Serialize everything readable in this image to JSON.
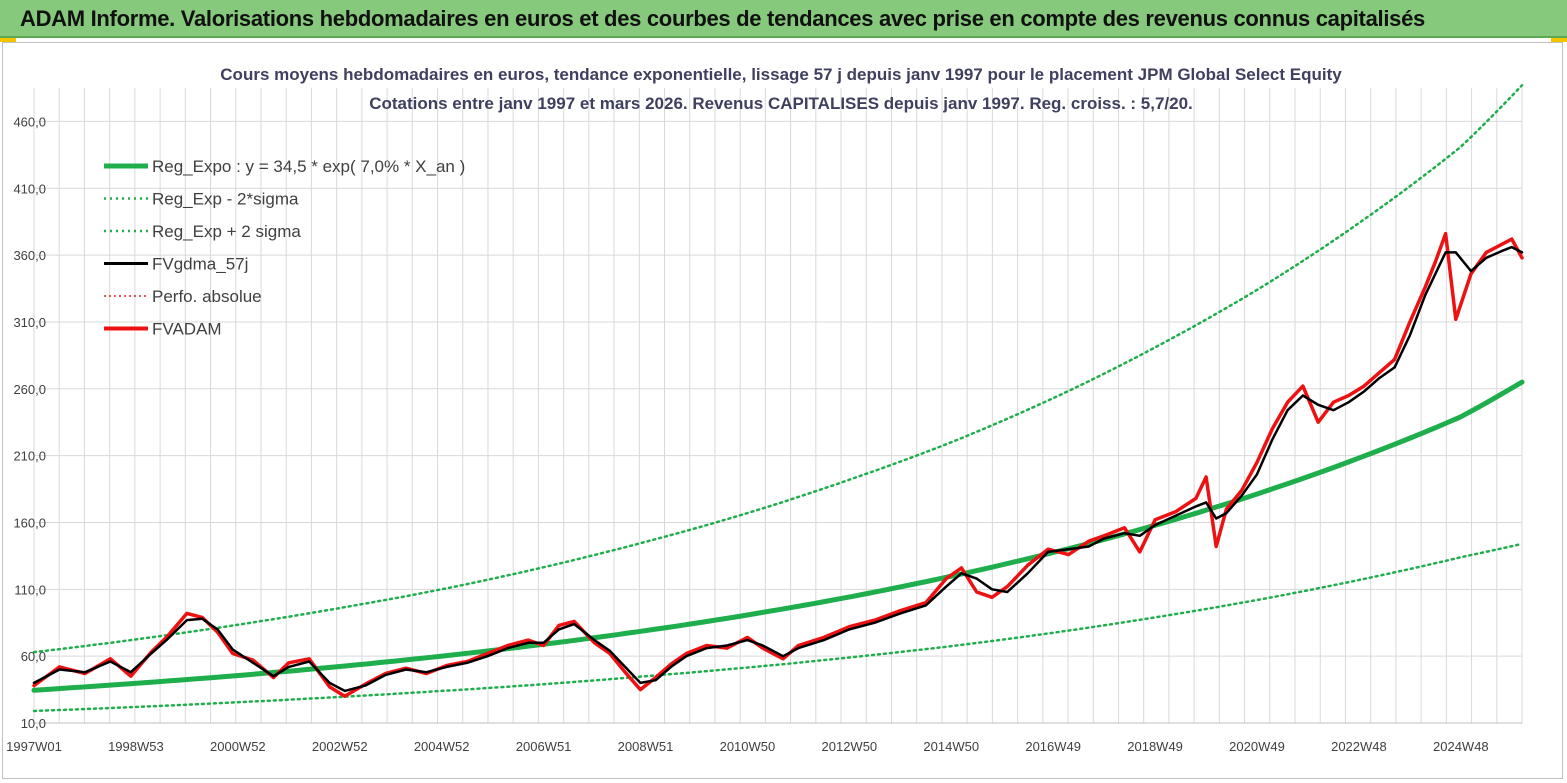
{
  "header": {
    "banner": "ADAM Informe. Valorisations hebdomadaires en euros et des courbes de tendances avec prise en compte des revenus connus capitalisés"
  },
  "colors": {
    "banner_bg": "#86c97c",
    "reg_expo": "#1fae4c",
    "sigma": "#1fae4c",
    "fvgdma": "#000000",
    "perfo": "#e02020",
    "fvadam": "#ee1111",
    "grid": "#d9d9d9"
  },
  "chart_data": {
    "type": "line",
    "title": [
      "Cours moyens hebdomadaires en euros, tendance exponentielle, lissage 57 j depuis janv 1997 pour le placement JPM Global Select Equity",
      "Cotations entre janv 1997 et mars 2026. Revenus CAPITALISES depuis janv 1997. Reg. croiss. : 5,7/20."
    ],
    "xlabel": "",
    "ylabel": "",
    "xlim": [
      1997.0,
      2026.2
    ],
    "ylim": [
      10,
      485
    ],
    "y_ticks": [
      "10,0",
      "60,0",
      "110,0",
      "160,0",
      "210,0",
      "260,0",
      "310,0",
      "360,0",
      "410,0",
      "460,0"
    ],
    "y_tick_values": [
      10,
      60,
      110,
      160,
      210,
      260,
      310,
      360,
      410,
      460
    ],
    "x_ticks": [
      "1997W01",
      "1998W53",
      "2000W52",
      "2002W52",
      "2004W52",
      "2006W51",
      "2008W51",
      "2010W50",
      "2012W50",
      "2014W50",
      "2016W49",
      "2018W49",
      "2020W49",
      "2022W48",
      "2024W48"
    ],
    "x_tick_values": [
      1997.0,
      1999.0,
      2001.0,
      2003.0,
      2005.0,
      2007.0,
      2009.0,
      2011.0,
      2013.0,
      2015.0,
      2017.0,
      2019.0,
      2021.0,
      2023.0,
      2025.0
    ],
    "legend": [
      {
        "label": "Reg_Expo : y = 34,5 * exp( 7,0% *  X_an )",
        "style": "thick-solid"
      },
      {
        "label": "Reg_Exp - 2*sigma",
        "style": "dotted"
      },
      {
        "label": "Reg_Exp + 2 sigma",
        "style": "dotted"
      },
      {
        "label": "FVgdma_57j",
        "style": "solid"
      },
      {
        "label": "Perfo. absolue",
        "style": "dotted-red"
      },
      {
        "label": "FVADAM",
        "style": "thick-solid-red"
      }
    ],
    "series": [
      {
        "name": "Reg_Expo : y = 34,5 * exp( 7,0% *  X_an )",
        "x": [
          1997.0,
          1999.0,
          2001.0,
          2003.0,
          2005.0,
          2007.0,
          2009.0,
          2011.0,
          2013.0,
          2015.0,
          2017.0,
          2019.0,
          2021.0,
          2023.0,
          2025.0,
          2026.2
        ],
        "y": [
          34.5,
          39.7,
          45.5,
          52.3,
          60.0,
          68.9,
          79.1,
          90.8,
          104.3,
          119.8,
          137.5,
          157.9,
          181.3,
          208.2,
          239.0,
          265.0
        ]
      },
      {
        "name": "Reg_Exp - 2*sigma",
        "x": [
          1997.0,
          1999.0,
          2001.0,
          2003.0,
          2005.0,
          2007.0,
          2009.0,
          2011.0,
          2013.0,
          2015.0,
          2017.0,
          2019.0,
          2021.0,
          2023.0,
          2025.0,
          2026.2
        ],
        "y": [
          19.0,
          22.0,
          25.5,
          29.5,
          34.0,
          39.0,
          45.0,
          51.5,
          59.0,
          67.5,
          77.5,
          89.0,
          102.0,
          117.0,
          134.0,
          144.0
        ]
      },
      {
        "name": "Reg_Exp + 2 sigma",
        "x": [
          1997.0,
          1999.0,
          2001.0,
          2003.0,
          2005.0,
          2007.0,
          2009.0,
          2011.0,
          2013.0,
          2015.0,
          2017.0,
          2019.0,
          2021.0,
          2023.0,
          2025.0,
          2026.2
        ],
        "y": [
          63.0,
          72.5,
          83.5,
          96.0,
          110.0,
          126.5,
          145.5,
          167.0,
          192.0,
          220.0,
          253.0,
          291.0,
          334.0,
          384.0,
          441.0,
          487.0
        ]
      },
      {
        "name": "FVgdma_57j",
        "x": [
          1997.0,
          1997.5,
          1998.0,
          1998.5,
          1998.9,
          1999.3,
          1999.6,
          2000.0,
          2000.3,
          2000.6,
          2000.9,
          2001.3,
          2001.7,
          2002.0,
          2002.4,
          2002.8,
          2003.1,
          2003.5,
          2003.9,
          2004.3,
          2004.7,
          2005.1,
          2005.5,
          2005.9,
          2006.3,
          2006.7,
          2007.0,
          2007.3,
          2007.6,
          2008.0,
          2008.3,
          2008.6,
          2008.9,
          2009.2,
          2009.5,
          2009.8,
          2010.2,
          2010.6,
          2011.0,
          2011.3,
          2011.7,
          2012.0,
          2012.5,
          2013.0,
          2013.5,
          2014.0,
          2014.5,
          2014.9,
          2015.2,
          2015.5,
          2015.8,
          2016.1,
          2016.5,
          2016.9,
          2017.3,
          2017.7,
          2018.0,
          2018.4,
          2018.7,
          2019.0,
          2019.4,
          2019.8,
          2020.0,
          2020.2,
          2020.4,
          2020.7,
          2021.0,
          2021.3,
          2021.6,
          2021.9,
          2022.2,
          2022.5,
          2022.8,
          2023.1,
          2023.4,
          2023.7,
          2024.0,
          2024.3,
          2024.5,
          2024.7,
          2024.9,
          2025.2,
          2025.5,
          2025.8,
          2026.0,
          2026.2
        ],
        "y": [
          40,
          50,
          48,
          56,
          48,
          62,
          72,
          87,
          88,
          80,
          65,
          55,
          45,
          52,
          56,
          40,
          34,
          38,
          46,
          50,
          48,
          52,
          55,
          60,
          66,
          70,
          70,
          80,
          84,
          72,
          64,
          52,
          40,
          42,
          52,
          60,
          66,
          68,
          72,
          68,
          60,
          66,
          72,
          80,
          85,
          92,
          98,
          112,
          122,
          118,
          110,
          108,
          122,
          138,
          140,
          142,
          148,
          152,
          150,
          158,
          165,
          172,
          175,
          163,
          167,
          180,
          196,
          222,
          244,
          255,
          248,
          244,
          250,
          258,
          268,
          276,
          300,
          330,
          346,
          362,
          362,
          348,
          358,
          363,
          366,
          362
        ]
      },
      {
        "name": "Perfo. absolue",
        "x": [],
        "y": []
      },
      {
        "name": "FVADAM",
        "x": [
          1997.0,
          1997.5,
          1998.0,
          1998.5,
          1998.9,
          1999.3,
          1999.6,
          2000.0,
          2000.3,
          2000.6,
          2000.9,
          2001.3,
          2001.7,
          2002.0,
          2002.4,
          2002.8,
          2003.1,
          2003.5,
          2003.9,
          2004.3,
          2004.7,
          2005.1,
          2005.5,
          2005.9,
          2006.3,
          2006.7,
          2007.0,
          2007.3,
          2007.6,
          2008.0,
          2008.3,
          2008.6,
          2008.9,
          2009.2,
          2009.5,
          2009.8,
          2010.2,
          2010.6,
          2011.0,
          2011.3,
          2011.7,
          2012.0,
          2012.5,
          2013.0,
          2013.5,
          2014.0,
          2014.5,
          2014.9,
          2015.2,
          2015.5,
          2015.8,
          2016.1,
          2016.5,
          2016.9,
          2017.3,
          2017.7,
          2018.0,
          2018.4,
          2018.7,
          2019.0,
          2019.4,
          2019.8,
          2020.0,
          2020.2,
          2020.4,
          2020.7,
          2021.0,
          2021.3,
          2021.6,
          2021.9,
          2022.2,
          2022.5,
          2022.8,
          2023.1,
          2023.4,
          2023.7,
          2024.0,
          2024.3,
          2024.5,
          2024.7,
          2024.9,
          2025.2,
          2025.5,
          2025.8,
          2026.0,
          2026.2
        ],
        "y": [
          38,
          52,
          47,
          58,
          45,
          63,
          74,
          92,
          89,
          78,
          62,
          57,
          44,
          55,
          58,
          37,
          30,
          39,
          47,
          51,
          47,
          53,
          56,
          62,
          68,
          72,
          68,
          83,
          86,
          70,
          62,
          48,
          35,
          44,
          54,
          62,
          68,
          66,
          74,
          66,
          58,
          68,
          74,
          82,
          87,
          94,
          100,
          118,
          126,
          108,
          104,
          112,
          128,
          140,
          136,
          146,
          150,
          156,
          138,
          162,
          168,
          178,
          194,
          142,
          170,
          184,
          205,
          230,
          250,
          262,
          235,
          250,
          255,
          262,
          272,
          282,
          310,
          336,
          355,
          376,
          312,
          346,
          362,
          368,
          372,
          358
        ]
      }
    ]
  }
}
